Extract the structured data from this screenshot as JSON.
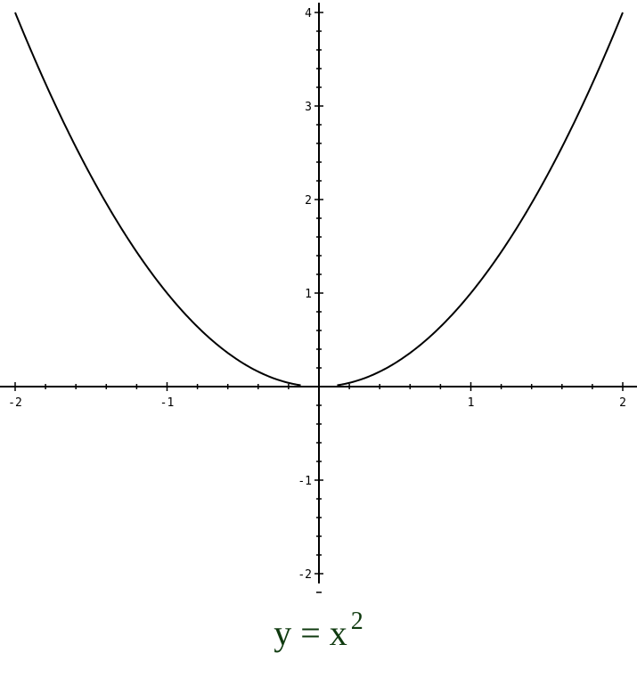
{
  "chart_data": {
    "type": "line",
    "function": "y = x^2",
    "title": "y = x²",
    "title_parts": {
      "lhs": "y = x",
      "exponent": "2"
    },
    "title_color": "#0f3a0f",
    "xlim": [
      -2,
      2
    ],
    "ylim": [
      -2.1,
      4.2
    ],
    "x_ticks": [
      -2,
      -1,
      1,
      2
    ],
    "x_tick_labels": [
      "-2",
      "-1",
      "1",
      "2"
    ],
    "y_ticks": [
      -2,
      -1,
      1,
      2,
      3,
      4
    ],
    "y_tick_labels": [
      "-2",
      "-1",
      "1",
      "2",
      "3",
      "4"
    ],
    "minor_tick_step": 0.2,
    "grid": false,
    "series": [
      {
        "x_range": [
          -2,
          -0.12
        ],
        "color": "#000000"
      },
      {
        "x_range": [
          0.12,
          2
        ],
        "color": "#000000"
      }
    ]
  }
}
